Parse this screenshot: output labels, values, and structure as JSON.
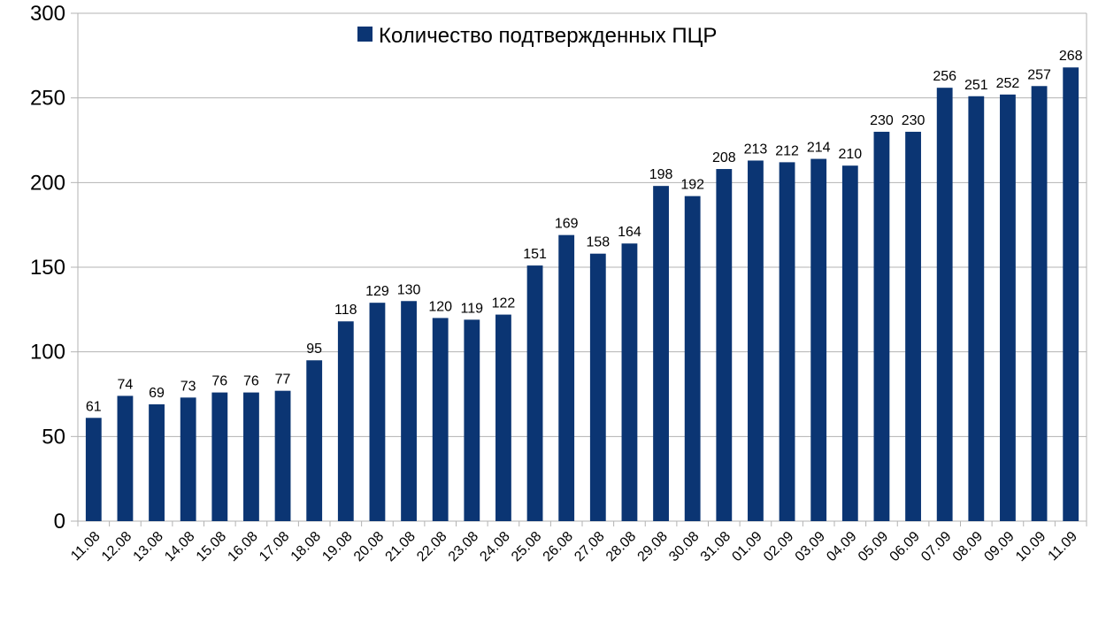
{
  "chart_data": {
    "type": "bar",
    "categories": [
      "11.08",
      "12.08",
      "13.08",
      "14.08",
      "15.08",
      "16.08",
      "17.08",
      "18.08",
      "19.08",
      "20.08",
      "21.08",
      "22.08",
      "23.08",
      "24.08",
      "25.08",
      "26.08",
      "27.08",
      "28.08",
      "29.08",
      "30.08",
      "31.08",
      "01.09",
      "02.09",
      "03.09",
      "04.09",
      "05.09",
      "06.09",
      "07.09",
      "08.09",
      "09.09",
      "10.09",
      "11.09"
    ],
    "series": [
      {
        "name": "Количество подтвержденных ПЦР",
        "values": [
          61,
          74,
          69,
          73,
          76,
          76,
          77,
          95,
          118,
          129,
          130,
          120,
          119,
          122,
          151,
          169,
          158,
          164,
          198,
          192,
          208,
          213,
          212,
          214,
          210,
          230,
          230,
          256,
          251,
          252,
          257,
          268
        ],
        "color": "#0b3573"
      }
    ],
    "ylim": [
      0,
      300
    ],
    "yticks": [
      0,
      50,
      100,
      150,
      200,
      250,
      300
    ],
    "grid": true,
    "legend_position": "top-center",
    "data_labels": true,
    "x_tick_rotation": "diagonal"
  },
  "colors": {
    "bar": "#0b3573",
    "grid": "#b3b3b3",
    "text": "#000000"
  }
}
